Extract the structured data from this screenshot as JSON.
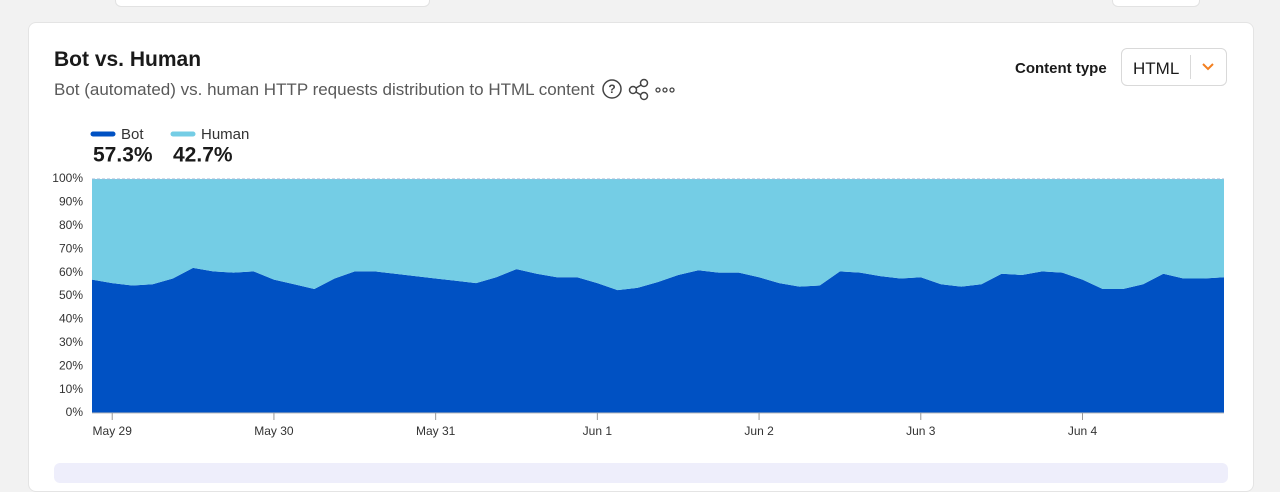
{
  "card": {
    "title": "Bot vs. Human",
    "subtitle": "Bot (automated) vs. human HTTP requests distribution to HTML content",
    "content_type_label": "Content type",
    "content_type_value": "HTML"
  },
  "chart_data": {
    "type": "stacked-area",
    "categories": [
      null,
      "May 29",
      null,
      null,
      null,
      null,
      null,
      null,
      null,
      "May 30",
      null,
      null,
      null,
      null,
      null,
      null,
      null,
      "May 31",
      null,
      null,
      null,
      null,
      null,
      null,
      null,
      "Jun 1",
      null,
      null,
      null,
      null,
      null,
      null,
      null,
      "Jun 2",
      null,
      null,
      null,
      null,
      null,
      null,
      null,
      "Jun 3",
      null,
      null,
      null,
      null,
      null,
      null,
      null,
      "Jun 4",
      null,
      null,
      null,
      null,
      null,
      null,
      null
    ],
    "series": [
      {
        "name": "Bot",
        "color": "#0051c3",
        "total_label": "57.3%",
        "values": [
          57,
          55.5,
          54.5,
          55,
          57.5,
          62,
          60.5,
          60,
          60.5,
          57,
          55,
          53,
          57.5,
          60.5,
          60.5,
          59.5,
          58.5,
          57.5,
          56.5,
          55.5,
          58,
          61.5,
          59.5,
          58,
          58,
          55.5,
          52.5,
          53.5,
          56,
          59,
          61,
          60,
          60,
          58,
          55.5,
          54,
          54.5,
          60.5,
          60,
          58.5,
          57.5,
          58,
          55,
          54,
          55,
          59.5,
          59,
          60.5,
          60,
          57,
          53,
          53,
          55,
          59.5,
          57.5,
          57.5,
          58
        ]
      },
      {
        "name": "Human",
        "color": "#74cde5",
        "total_label": "42.7%",
        "values": [
          43,
          44.5,
          45.5,
          45,
          42.5,
          38,
          39.5,
          40,
          39.5,
          43,
          45,
          47,
          42.5,
          39.5,
          39.5,
          40.5,
          41.5,
          42.5,
          43.5,
          44.5,
          42,
          38.5,
          40.5,
          42,
          42,
          44.5,
          47.5,
          46.5,
          44,
          41,
          39,
          40,
          40,
          42,
          44.5,
          46,
          45.5,
          39.5,
          40,
          41.5,
          42.5,
          42,
          45,
          46,
          45,
          40.5,
          41,
          39.5,
          40,
          43,
          47,
          47,
          45,
          40.5,
          42.5,
          42.5,
          42
        ]
      }
    ],
    "ylim": [
      0,
      100
    ],
    "yticks": [
      {
        "value": 0,
        "label": "0%"
      },
      {
        "value": 10,
        "label": "10%"
      },
      {
        "value": 20,
        "label": "20%"
      },
      {
        "value": 30,
        "label": "30%"
      },
      {
        "value": 40,
        "label": "40%"
      },
      {
        "value": 50,
        "label": "50%"
      },
      {
        "value": 60,
        "label": "60%"
      },
      {
        "value": 70,
        "label": "70%"
      },
      {
        "value": 80,
        "label": "80%"
      },
      {
        "value": 90,
        "label": "90%"
      },
      {
        "value": 100,
        "label": "100%"
      }
    ],
    "grid": false
  }
}
